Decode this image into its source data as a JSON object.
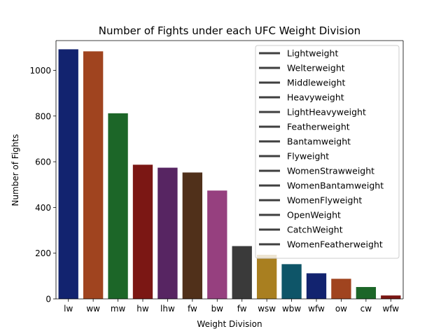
{
  "chart_data": {
    "type": "bar",
    "title": "Number of Fights under each UFC Weight Division",
    "xlabel": "Weight Division",
    "ylabel": "Number of Fights",
    "ylim": [
      0,
      1130
    ],
    "yticks": [
      0,
      200,
      400,
      600,
      800,
      1000
    ],
    "categories": [
      "lw",
      "ww",
      "mw",
      "hw",
      "lhw",
      "fw",
      "bw",
      "fw",
      "wsw",
      "wbw",
      "wfw",
      "ow",
      "cw",
      "wfw"
    ],
    "values": [
      1092,
      1083,
      812,
      587,
      574,
      553,
      474,
      231,
      193,
      152,
      112,
      88,
      52,
      15
    ],
    "colors": [
      "#12236f",
      "#a0441f",
      "#1c6628",
      "#7b1714",
      "#572562",
      "#50301a",
      "#96407f",
      "#3a3a3a",
      "#a97f20",
      "#0e5568",
      "#12236f",
      "#a0441f",
      "#1c6628",
      "#7b1714"
    ],
    "legend": {
      "placement": "top-right",
      "entries": [
        "Lightweight",
        "Welterweight",
        "Middleweight",
        "Heavyweight",
        "LightHeavyweight",
        "Featherweight",
        "Bantamweight",
        "Flyweight",
        "WomenStrawweight",
        "WomenBantamweight",
        "WomenFlyweight",
        "OpenWeight",
        "CatchWeight",
        "WomenFeatherweight"
      ]
    },
    "grid": false
  }
}
